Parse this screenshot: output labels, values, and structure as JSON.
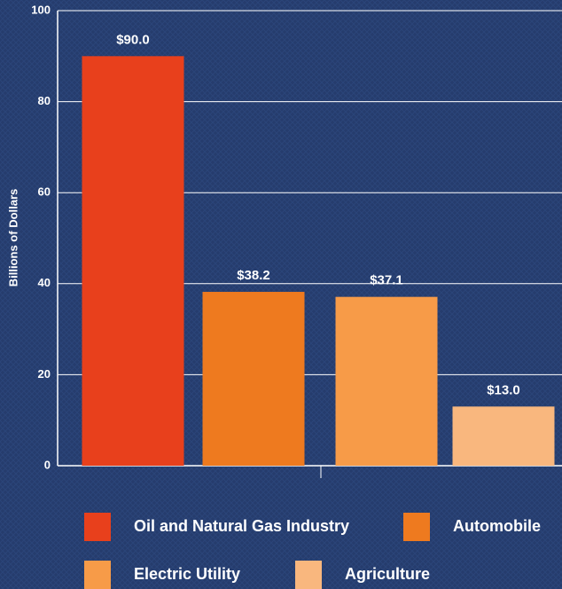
{
  "chart_data": {
    "type": "bar",
    "y_label": "Billions of Dollars",
    "categories": [
      "Oil and Natural Gas Industry",
      "Automobile",
      "Electric Utility",
      "Agriculture"
    ],
    "values": [
      90.0,
      38.2,
      37.1,
      13.0
    ],
    "value_labels": [
      "$90.0",
      "$38.2",
      "$37.1",
      "$13.0"
    ],
    "colors": [
      "#e8401c",
      "#ee7a1f",
      "#f79b48",
      "#f9b77e"
    ],
    "ylim": [
      0,
      100
    ],
    "yticks": [
      0,
      20,
      40,
      60,
      80,
      100
    ],
    "grid": true,
    "legend": "bottom"
  }
}
